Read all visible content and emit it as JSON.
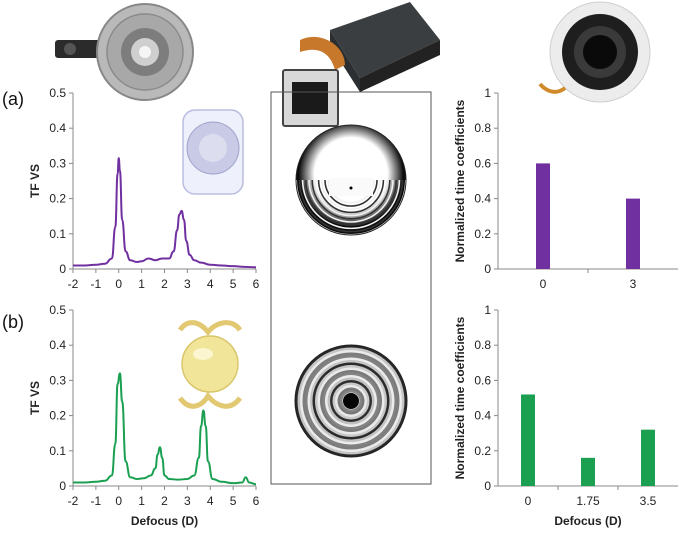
{
  "panels": [
    {
      "label": "(a)"
    },
    {
      "label": "(b)"
    }
  ],
  "chart_data": [
    {
      "id": "tf-a",
      "type": "line",
      "ylabel": "TF VS",
      "xlabel": "",
      "xlim": [
        -2,
        6
      ],
      "ylim": [
        0,
        0.5
      ],
      "xticks": [
        -2,
        -1,
        0,
        1,
        2,
        3,
        4,
        5,
        6
      ],
      "yticks": [
        0,
        0.1,
        0.2,
        0.3,
        0.4,
        0.5
      ],
      "color": "#7030a0",
      "x": [
        -2,
        -1.5,
        -1,
        -0.6,
        -0.3,
        -0.15,
        -0.05,
        0,
        0.05,
        0.15,
        0.3,
        0.5,
        0.8,
        1.0,
        1.3,
        1.6,
        1.9,
        2.2,
        2.4,
        2.55,
        2.65,
        2.75,
        2.85,
        2.95,
        3.1,
        3.3,
        3.6,
        4.0,
        4.5,
        5.0,
        5.5,
        6.0
      ],
      "y": [
        0.01,
        0.01,
        0.012,
        0.015,
        0.03,
        0.12,
        0.27,
        0.315,
        0.28,
        0.14,
        0.05,
        0.025,
        0.02,
        0.022,
        0.03,
        0.025,
        0.03,
        0.03,
        0.05,
        0.11,
        0.155,
        0.165,
        0.14,
        0.08,
        0.04,
        0.025,
        0.018,
        0.012,
        0.01,
        0.008,
        0.006,
        0.005
      ]
    },
    {
      "id": "tf-b",
      "type": "line",
      "ylabel": "TF VS",
      "xlabel": "Defocus (D)",
      "xlim": [
        -2,
        6
      ],
      "ylim": [
        0,
        0.5
      ],
      "xticks": [
        -2,
        -1,
        0,
        1,
        2,
        3,
        4,
        5,
        6
      ],
      "yticks": [
        0,
        0.1,
        0.2,
        0.3,
        0.4,
        0.5
      ],
      "color": "#1aa050",
      "x": [
        -2,
        -1.5,
        -1,
        -0.6,
        -0.3,
        -0.15,
        -0.05,
        0.05,
        0.15,
        0.3,
        0.5,
        0.8,
        1.1,
        1.4,
        1.6,
        1.7,
        1.8,
        1.9,
        2.0,
        2.2,
        2.6,
        3.0,
        3.3,
        3.5,
        3.6,
        3.7,
        3.8,
        3.9,
        4.1,
        4.5,
        5.0,
        5.4,
        5.55,
        5.7,
        6.0
      ],
      "y": [
        0.01,
        0.01,
        0.012,
        0.015,
        0.03,
        0.12,
        0.29,
        0.32,
        0.24,
        0.07,
        0.025,
        0.02,
        0.022,
        0.03,
        0.05,
        0.09,
        0.11,
        0.08,
        0.03,
        0.02,
        0.018,
        0.02,
        0.03,
        0.08,
        0.17,
        0.215,
        0.17,
        0.07,
        0.02,
        0.012,
        0.008,
        0.01,
        0.025,
        0.01,
        0.005
      ]
    },
    {
      "id": "bar-a",
      "type": "bar",
      "ylabel": "Normalized time coefficients",
      "xlabel": "",
      "categories": [
        "0",
        "3"
      ],
      "values": [
        0.6,
        0.4
      ],
      "ylim": [
        0,
        1
      ],
      "yticks": [
        0,
        0.2,
        0.4,
        0.6,
        0.8,
        1
      ],
      "color": "#7030a0"
    },
    {
      "id": "bar-b",
      "type": "bar",
      "ylabel": "Normalized time coefficients",
      "xlabel": "Defocus (D)",
      "categories": [
        "0",
        "1.75",
        "3.5"
      ],
      "values": [
        0.52,
        0.16,
        0.32
      ],
      "ylim": [
        0,
        1
      ],
      "yticks": [
        0,
        0.2,
        0.4,
        0.6,
        0.8,
        1
      ],
      "color": "#1aa050"
    }
  ]
}
